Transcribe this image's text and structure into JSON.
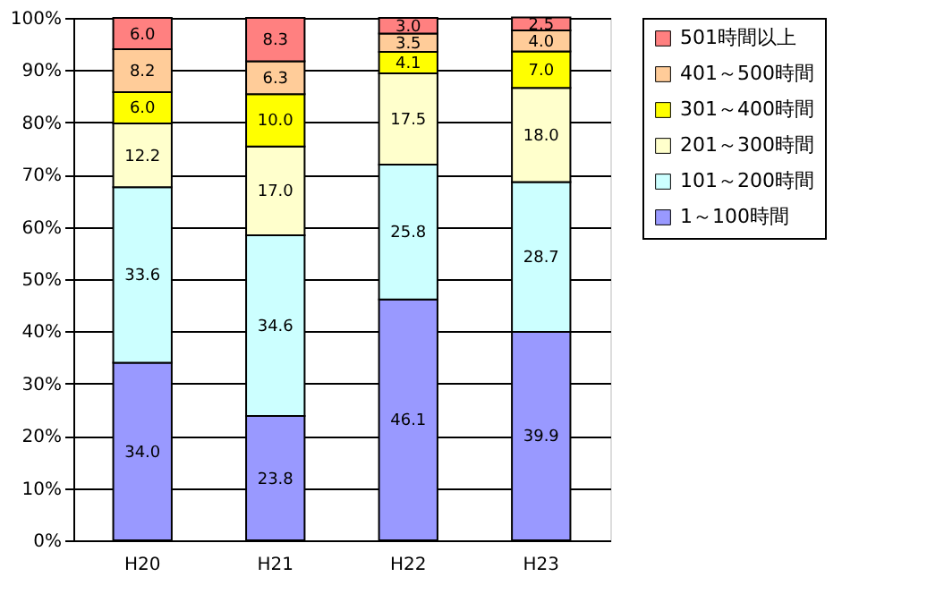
{
  "chart_data": {
    "type": "bar",
    "stacked": true,
    "categories": [
      "H20",
      "H21",
      "H22",
      "H23"
    ],
    "series": [
      {
        "name": "1～100時間",
        "color": "#9999ff",
        "values": [
          34.0,
          23.8,
          46.1,
          39.9
        ],
        "value_labels": [
          "34.0",
          "23.8",
          "46.1",
          "39.9"
        ]
      },
      {
        "name": "101～200時間",
        "color": "#ccffff",
        "values": [
          33.6,
          34.6,
          25.8,
          28.7
        ],
        "value_labels": [
          "33.6",
          "34.6",
          "25.8",
          "28.7"
        ]
      },
      {
        "name": "201～300時間",
        "color": "#ffffcc",
        "values": [
          12.2,
          17.0,
          17.5,
          18.0
        ],
        "value_labels": [
          "12.2",
          "17.0",
          "17.5",
          "18.0"
        ]
      },
      {
        "name": "301～400時間",
        "color": "#ffff00",
        "values": [
          6.0,
          10.0,
          4.1,
          7.0
        ],
        "value_labels": [
          "6.0",
          "10.0",
          "4.1",
          "7.0"
        ]
      },
      {
        "name": "401～500時間",
        "color": "#ffcc99",
        "values": [
          8.2,
          6.3,
          3.5,
          4.0
        ],
        "value_labels": [
          "8.2",
          "6.3",
          "3.5",
          "4.0"
        ]
      },
      {
        "name": "501時間以上",
        "color": "#ff8080",
        "values": [
          6.0,
          8.3,
          3.0,
          2.5
        ],
        "value_labels": [
          "6.0",
          "8.3",
          "3.0",
          "2.5"
        ]
      }
    ],
    "ylim": [
      0,
      100
    ],
    "yticks": [
      {
        "value": 0,
        "label": "0%"
      },
      {
        "value": 10,
        "label": "10%"
      },
      {
        "value": 20,
        "label": "20%"
      },
      {
        "value": 30,
        "label": "30%"
      },
      {
        "value": 40,
        "label": "40%"
      },
      {
        "value": 50,
        "label": "50%"
      },
      {
        "value": 60,
        "label": "60%"
      },
      {
        "value": 70,
        "label": "70%"
      },
      {
        "value": 80,
        "label": "80%"
      },
      {
        "value": 90,
        "label": "90%"
      },
      {
        "value": 100,
        "label": "100%"
      }
    ],
    "grid": "y",
    "legend": "right"
  }
}
